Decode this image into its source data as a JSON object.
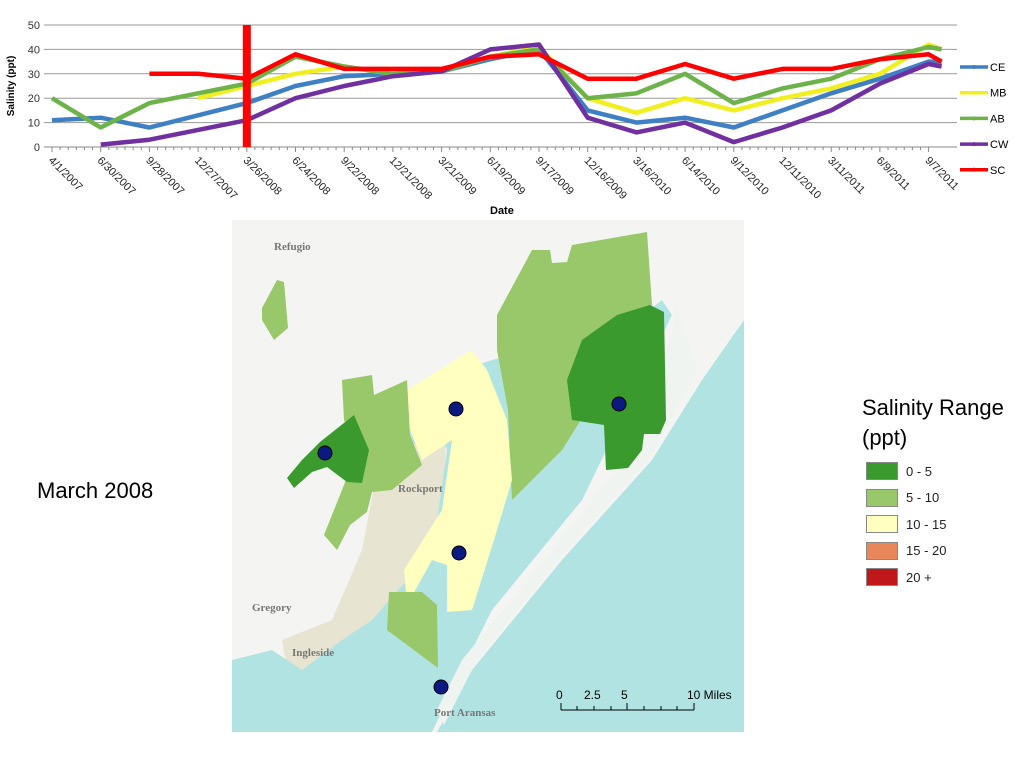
{
  "chart_data": {
    "type": "line",
    "xlabel": "Date",
    "ylabel": "Salinity (ppt)",
    "ylim": [
      0,
      50
    ],
    "yticks": [
      "0",
      "10",
      "20",
      "30",
      "40",
      "50"
    ],
    "grid": true,
    "legend_placement": "right",
    "xtick_labels": [
      "4/1/2007",
      "6/30/2007",
      "9/28/2007",
      "12/27/2007",
      "3/26/2008",
      "6/24/2008",
      "9/22/2008",
      "12/21/2008",
      "3/21/2009",
      "6/19/2009",
      "9/17/2009",
      "12/16/2009",
      "3/16/2010",
      "6/14/2010",
      "9/12/2010",
      "12/11/2010",
      "3/11/2011",
      "6/9/2011",
      "9/7/2011"
    ],
    "x": [
      "4/1/2007",
      "6/30/2007",
      "9/28/2007",
      "12/27/2007",
      "3/26/2008",
      "6/24/2008",
      "9/22/2008",
      "12/21/2008",
      "3/21/2009",
      "6/19/2009",
      "9/17/2009",
      "12/16/2009",
      "3/16/2010",
      "6/14/2010",
      "9/12/2010",
      "12/11/2010",
      "3/11/2011",
      "6/9/2011",
      "9/7/2011",
      "10/1/2011"
    ],
    "marker": {
      "date": "3/26/2008",
      "color": "#ff0000"
    },
    "series": [
      {
        "name": "CE",
        "color": "#3f7fc4",
        "values": [
          11,
          12,
          8,
          13,
          18,
          25,
          29,
          30,
          31,
          36,
          40,
          15,
          10,
          12,
          8,
          15,
          22,
          28,
          35,
          35
        ]
      },
      {
        "name": "MB",
        "color": "#f0f020",
        "values": [
          null,
          null,
          null,
          20,
          25,
          30,
          33,
          30,
          31,
          37,
          41,
          20,
          14,
          20,
          15,
          20,
          24,
          30,
          42,
          40
        ]
      },
      {
        "name": "AB",
        "color": "#6db34a",
        "values": [
          20,
          8,
          18,
          22,
          26,
          37,
          33,
          30,
          31,
          37,
          40,
          20,
          22,
          30,
          18,
          24,
          28,
          36,
          41,
          40
        ]
      },
      {
        "name": "CW",
        "color": "#7030a0",
        "values": [
          null,
          1,
          3,
          7,
          11,
          20,
          25,
          29,
          31,
          40,
          42,
          12,
          6,
          10,
          2,
          8,
          15,
          26,
          34,
          33
        ]
      },
      {
        "name": "SC",
        "color": "#ff0000",
        "values": [
          null,
          null,
          30,
          30,
          28,
          38,
          32,
          32,
          32,
          37,
          38,
          28,
          28,
          34,
          28,
          32,
          32,
          36,
          38,
          35
        ]
      }
    ]
  },
  "slide": {
    "period_label": "March 2008"
  },
  "map": {
    "places": [
      "Refugio",
      "Rockport",
      "Gregory",
      "Ingleside",
      "Port Aransas"
    ],
    "scale_labels": [
      "0",
      "2.5",
      "5",
      "10 Miles"
    ],
    "station_color": "#0a1a80",
    "stations": 5
  },
  "legend": {
    "title": "Salinity Range (ppt)",
    "items": [
      {
        "label": "0 - 5",
        "color": "#3a9a2e"
      },
      {
        "label": "5 - 10",
        "color": "#98c86a"
      },
      {
        "label": "10 - 15",
        "color": "#ffffc0"
      },
      {
        "label": "15 - 20",
        "color": "#e8875a"
      },
      {
        "label": "20 +",
        "color": "#c0181a"
      }
    ]
  }
}
